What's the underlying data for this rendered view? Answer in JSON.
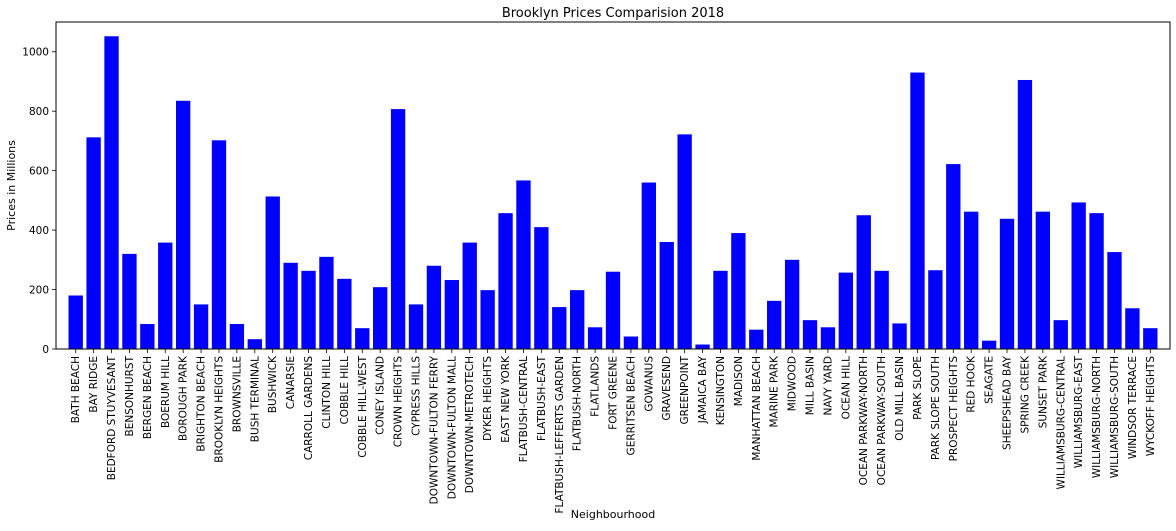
{
  "chart_data": {
    "type": "bar",
    "title": "Brooklyn Prices Comparision 2018",
    "xlabel": "Neighbourhood",
    "ylabel": "Prices in Millions",
    "ylim": [
      0,
      1100
    ],
    "yticks": [
      0,
      200,
      400,
      600,
      800,
      1000
    ],
    "grid": false,
    "bar_color": "#0000ff",
    "categories": [
      "BATH BEACH",
      "BAY RIDGE",
      "BEDFORD STUYVESANT",
      "BENSONHURST",
      "BERGEN BEACH",
      "BOERUM HILL",
      "BOROUGH PARK",
      "BRIGHTON BEACH",
      "BROOKLYN HEIGHTS",
      "BROWNSVILLE",
      "BUSH TERMINAL",
      "BUSHWICK",
      "CANARSIE",
      "CARROLL GARDENS",
      "CLINTON HILL",
      "COBBLE HILL",
      "COBBLE HILL-WEST",
      "CONEY ISLAND",
      "CROWN HEIGHTS",
      "CYPRESS HILLS",
      "DOWNTOWN-FULTON FERRY",
      "DOWNTOWN-FULTON MALL",
      "DOWNTOWN-METROTECH",
      "DYKER HEIGHTS",
      "EAST NEW YORK",
      "FLATBUSH-CENTRAL",
      "FLATBUSH-EAST",
      "FLATBUSH-LEFFERTS GARDEN",
      "FLATBUSH-NORTH",
      "FLATLANDS",
      "FORT GREENE",
      "GERRITSEN BEACH",
      "GOWANUS",
      "GRAVESEND",
      "GREENPOINT",
      "JAMAICA BAY",
      "KENSINGTON",
      "MADISON",
      "MANHATTAN BEACH",
      "MARINE PARK",
      "MIDWOOD",
      "MILL BASIN",
      "NAVY YARD",
      "OCEAN HILL",
      "OCEAN PARKWAY-NORTH",
      "OCEAN PARKWAY-SOUTH",
      "OLD MILL BASIN",
      "PARK SLOPE",
      "PARK SLOPE SOUTH",
      "PROSPECT HEIGHTS",
      "RED HOOK",
      "SEAGATE",
      "SHEEPSHEAD BAY",
      "SPRING CREEK",
      "SUNSET PARK",
      "WILLIAMSBURG-CENTRAL",
      "WILLIAMSBURG-EAST",
      "WILLIAMSBURG-NORTH",
      "WILLIAMSBURG-SOUTH",
      "WINDSOR TERRACE",
      "WYCKOFF HEIGHTS"
    ],
    "values": [
      180,
      712,
      1052,
      320,
      84,
      358,
      835,
      150,
      702,
      84,
      33,
      513,
      290,
      263,
      310,
      236,
      70,
      208,
      807,
      150,
      280,
      232,
      358,
      198,
      457,
      567,
      410,
      141,
      198,
      73,
      260,
      42,
      560,
      360,
      722,
      15,
      263,
      390,
      65,
      162,
      300,
      97,
      73,
      257,
      450,
      263,
      86,
      930,
      265,
      622,
      462,
      28,
      438,
      905,
      462,
      97,
      493,
      457,
      326,
      137,
      70
    ]
  }
}
